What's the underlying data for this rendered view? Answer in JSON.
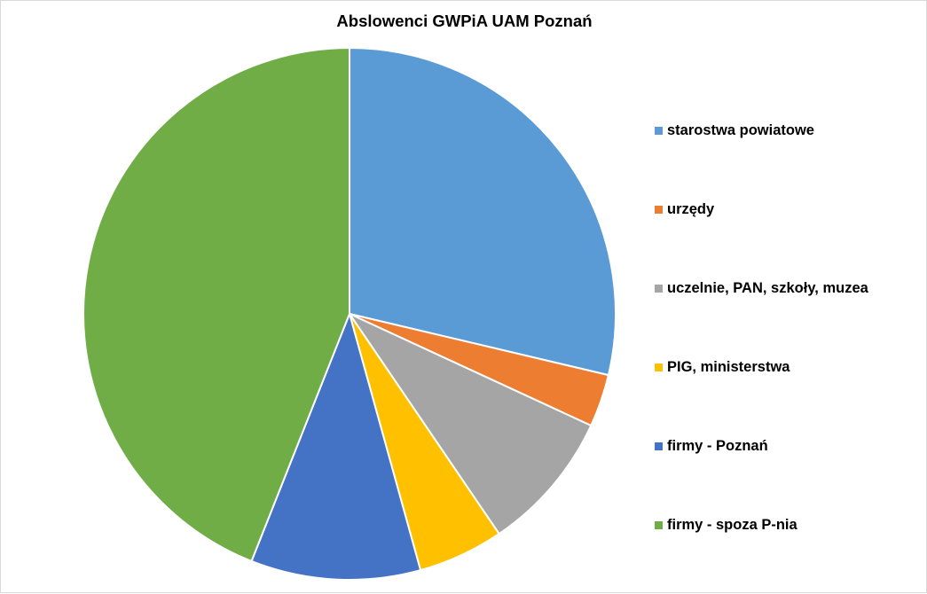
{
  "chart_data": {
    "type": "pie",
    "title": "Abslowenci GWPiA  UAM Poznań",
    "slices": [
      {
        "label": "starostwa powiatowe",
        "value": 28.7,
        "color": "#5B9BD5"
      },
      {
        "label": "urzędy",
        "value": 3.2,
        "color": "#ED7D31"
      },
      {
        "label": "uczelnie, PAN, szkoły, muzea",
        "value": 8.6,
        "color": "#A5A5A5"
      },
      {
        "label": "PIG, ministerstwa",
        "value": 5.2,
        "color": "#FFC000"
      },
      {
        "label": "firmy - Poznań",
        "value": 10.3,
        "color": "#4472C4"
      },
      {
        "label": "firmy - spoza P-nia",
        "value": 44.0,
        "color": "#70AD47"
      }
    ],
    "legend_position": "right",
    "start_angle": "12 o'clock",
    "direction": "clockwise"
  }
}
